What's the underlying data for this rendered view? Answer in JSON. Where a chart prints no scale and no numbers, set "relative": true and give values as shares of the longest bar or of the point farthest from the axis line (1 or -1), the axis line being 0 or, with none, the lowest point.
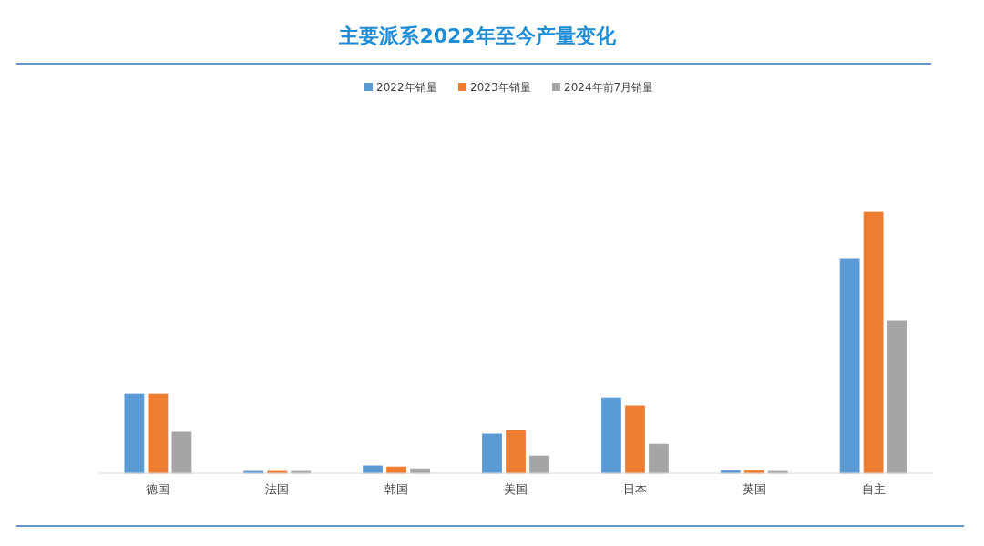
{
  "chart_data": {
    "type": "bar",
    "title": "主要派系2022年至今产量变化",
    "relative": true,
    "legend": "top",
    "categories": [
      "德国",
      "法国",
      "韩国",
      "美国",
      "日本",
      "英国",
      "自主"
    ],
    "series": [
      {
        "name": "2022年销量",
        "color": "#5b9bd5",
        "values": [
          0.303,
          0.007,
          0.028,
          0.15,
          0.289,
          0.01,
          0.819
        ]
      },
      {
        "name": "2023年销量",
        "color": "#ed7d31",
        "values": [
          0.303,
          0.007,
          0.024,
          0.164,
          0.258,
          0.01,
          1
        ]
      },
      {
        "name": "2024年前7月销量",
        "color": "#a5a5a5",
        "values": [
          0.157,
          0.007,
          0.017,
          0.066,
          0.111,
          0.007,
          0.582
        ]
      }
    ]
  }
}
